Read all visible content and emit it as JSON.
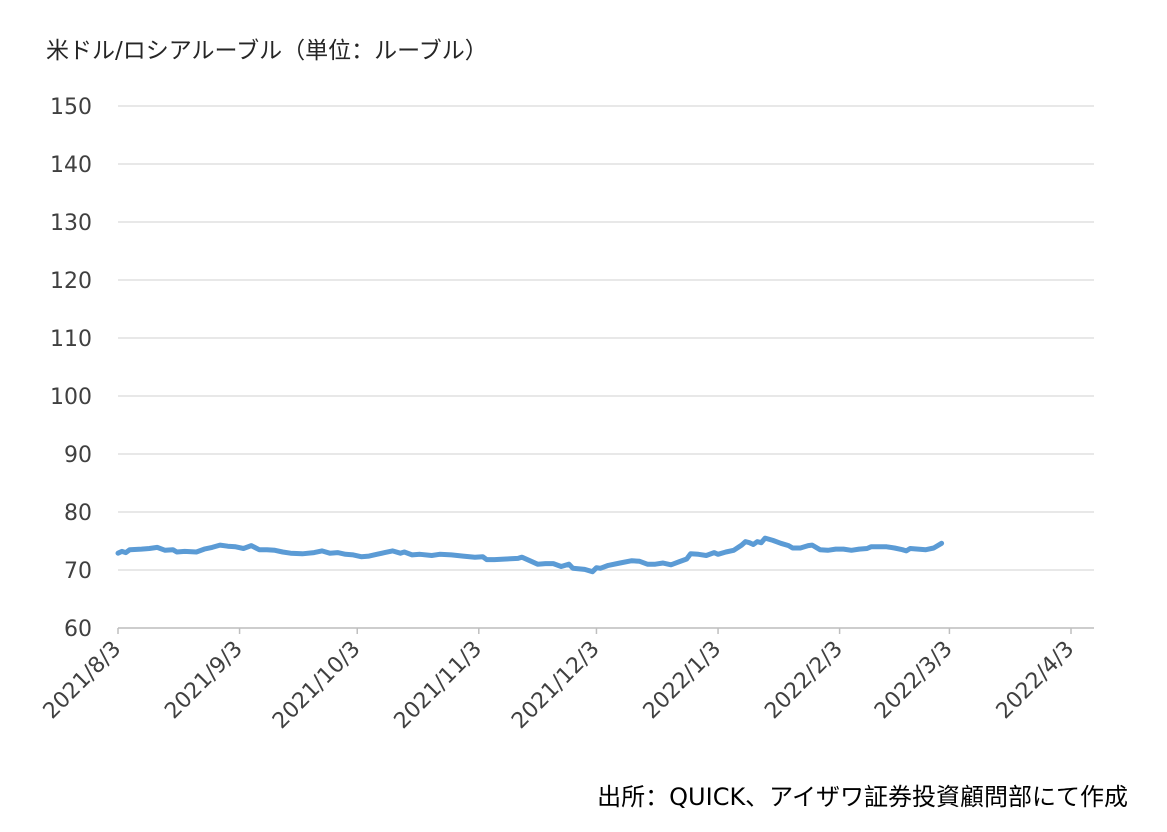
{
  "chart_data": {
    "type": "line",
    "title": "",
    "y_unit_label": "米ドル/ロシアルーブル（単位：ルーブル）",
    "source_note": "出所：QUICK、アイザワ証券投資顧問部にて作成",
    "ylim": [
      60,
      150
    ],
    "y_ticks": [
      150,
      140,
      130,
      120,
      110,
      100,
      90,
      80,
      70,
      60
    ],
    "x_tick_labels": [
      "2021/8/3",
      "2021/9/3",
      "2021/10/3",
      "2021/11/3",
      "2021/12/3",
      "2022/1/3",
      "2022/2/3",
      "2022/3/3",
      "2022/4/3"
    ],
    "grid": true,
    "line_color": "#5B9BD5",
    "grid_color": "#D9D9D9",
    "series": [
      {
        "values": [
          {
            "x": "2021-08-03",
            "y": 72.9
          },
          {
            "x": "2021-08-04",
            "y": 73.2
          },
          {
            "x": "2021-08-05",
            "y": 73.0
          },
          {
            "x": "2021-08-06",
            "y": 73.5
          },
          {
            "x": "2021-08-09",
            "y": 73.6
          },
          {
            "x": "2021-08-11",
            "y": 73.7
          },
          {
            "x": "2021-08-13",
            "y": 73.9
          },
          {
            "x": "2021-08-15",
            "y": 73.4
          },
          {
            "x": "2021-08-17",
            "y": 73.5
          },
          {
            "x": "2021-08-18",
            "y": 73.1
          },
          {
            "x": "2021-08-20",
            "y": 73.2
          },
          {
            "x": "2021-08-23",
            "y": 73.1
          },
          {
            "x": "2021-08-25",
            "y": 73.6
          },
          {
            "x": "2021-08-27",
            "y": 73.9
          },
          {
            "x": "2021-08-29",
            "y": 74.3
          },
          {
            "x": "2021-08-31",
            "y": 74.1
          },
          {
            "x": "2021-09-02",
            "y": 74.0
          },
          {
            "x": "2021-09-04",
            "y": 73.7
          },
          {
            "x": "2021-09-06",
            "y": 74.2
          },
          {
            "x": "2021-09-08",
            "y": 73.5
          },
          {
            "x": "2021-09-10",
            "y": 73.5
          },
          {
            "x": "2021-09-12",
            "y": 73.4
          },
          {
            "x": "2021-09-14",
            "y": 73.1
          },
          {
            "x": "2021-09-16",
            "y": 72.9
          },
          {
            "x": "2021-09-19",
            "y": 72.8
          },
          {
            "x": "2021-09-22",
            "y": 73.0
          },
          {
            "x": "2021-09-24",
            "y": 73.3
          },
          {
            "x": "2021-09-26",
            "y": 72.9
          },
          {
            "x": "2021-09-28",
            "y": 73.0
          },
          {
            "x": "2021-09-30",
            "y": 72.7
          },
          {
            "x": "2021-10-02",
            "y": 72.6
          },
          {
            "x": "2021-10-04",
            "y": 72.3
          },
          {
            "x": "2021-10-06",
            "y": 72.4
          },
          {
            "x": "2021-10-08",
            "y": 72.7
          },
          {
            "x": "2021-10-10",
            "y": 73.0
          },
          {
            "x": "2021-10-12",
            "y": 73.3
          },
          {
            "x": "2021-10-14",
            "y": 72.9
          },
          {
            "x": "2021-10-15",
            "y": 73.1
          },
          {
            "x": "2021-10-17",
            "y": 72.6
          },
          {
            "x": "2021-10-19",
            "y": 72.7
          },
          {
            "x": "2021-10-22",
            "y": 72.5
          },
          {
            "x": "2021-10-24",
            "y": 72.7
          },
          {
            "x": "2021-10-27",
            "y": 72.6
          },
          {
            "x": "2021-10-30",
            "y": 72.4
          },
          {
            "x": "2021-11-02",
            "y": 72.2
          },
          {
            "x": "2021-11-04",
            "y": 72.3
          },
          {
            "x": "2021-11-05",
            "y": 71.8
          },
          {
            "x": "2021-11-07",
            "y": 71.8
          },
          {
            "x": "2021-11-10",
            "y": 71.9
          },
          {
            "x": "2021-11-13",
            "y": 72.0
          },
          {
            "x": "2021-11-14",
            "y": 72.2
          },
          {
            "x": "2021-11-16",
            "y": 71.6
          },
          {
            "x": "2021-11-18",
            "y": 71.0
          },
          {
            "x": "2021-11-20",
            "y": 71.1
          },
          {
            "x": "2021-11-22",
            "y": 71.1
          },
          {
            "x": "2021-11-24",
            "y": 70.6
          },
          {
            "x": "2021-11-26",
            "y": 71.0
          },
          {
            "x": "2021-11-27",
            "y": 70.3
          },
          {
            "x": "2021-11-30",
            "y": 70.1
          },
          {
            "x": "2021-12-02",
            "y": 69.7
          },
          {
            "x": "2021-12-03",
            "y": 70.4
          },
          {
            "x": "2021-12-04",
            "y": 70.3
          },
          {
            "x": "2021-12-06",
            "y": 70.8
          },
          {
            "x": "2021-12-09",
            "y": 71.2
          },
          {
            "x": "2021-12-12",
            "y": 71.6
          },
          {
            "x": "2021-12-14",
            "y": 71.5
          },
          {
            "x": "2021-12-16",
            "y": 71.0
          },
          {
            "x": "2021-12-18",
            "y": 71.0
          },
          {
            "x": "2021-12-20",
            "y": 71.2
          },
          {
            "x": "2021-12-22",
            "y": 70.9
          },
          {
            "x": "2021-12-24",
            "y": 71.4
          },
          {
            "x": "2021-12-26",
            "y": 71.9
          },
          {
            "x": "2021-12-27",
            "y": 72.8
          },
          {
            "x": "2021-12-29",
            "y": 72.7
          },
          {
            "x": "2021-12-31",
            "y": 72.5
          },
          {
            "x": "2022-01-02",
            "y": 73.0
          },
          {
            "x": "2022-01-03",
            "y": 72.7
          },
          {
            "x": "2022-01-05",
            "y": 73.1
          },
          {
            "x": "2022-01-07",
            "y": 73.4
          },
          {
            "x": "2022-01-09",
            "y": 74.3
          },
          {
            "x": "2022-01-10",
            "y": 74.9
          },
          {
            "x": "2022-01-11",
            "y": 74.7
          },
          {
            "x": "2022-01-12",
            "y": 74.4
          },
          {
            "x": "2022-01-13",
            "y": 74.9
          },
          {
            "x": "2022-01-14",
            "y": 74.7
          },
          {
            "x": "2022-01-15",
            "y": 75.5
          },
          {
            "x": "2022-01-17",
            "y": 75.1
          },
          {
            "x": "2022-01-19",
            "y": 74.6
          },
          {
            "x": "2022-01-21",
            "y": 74.2
          },
          {
            "x": "2022-01-22",
            "y": 73.8
          },
          {
            "x": "2022-01-24",
            "y": 73.8
          },
          {
            "x": "2022-01-26",
            "y": 74.2
          },
          {
            "x": "2022-01-27",
            "y": 74.3
          },
          {
            "x": "2022-01-29",
            "y": 73.5
          },
          {
            "x": "2022-01-31",
            "y": 73.4
          },
          {
            "x": "2022-02-02",
            "y": 73.6
          },
          {
            "x": "2022-02-04",
            "y": 73.6
          },
          {
            "x": "2022-02-06",
            "y": 73.4
          },
          {
            "x": "2022-02-08",
            "y": 73.6
          },
          {
            "x": "2022-02-10",
            "y": 73.7
          },
          {
            "x": "2022-02-11",
            "y": 74.0
          },
          {
            "x": "2022-02-13",
            "y": 74.0
          },
          {
            "x": "2022-02-15",
            "y": 74.0
          },
          {
            "x": "2022-02-17",
            "y": 73.8
          },
          {
            "x": "2022-02-19",
            "y": 73.5
          },
          {
            "x": "2022-02-20",
            "y": 73.3
          },
          {
            "x": "2022-02-21",
            "y": 73.7
          },
          {
            "x": "2022-02-23",
            "y": 73.6
          },
          {
            "x": "2022-02-25",
            "y": 73.5
          },
          {
            "x": "2022-02-27",
            "y": 73.8
          },
          {
            "x": "2022-03-01",
            "y": 74.6
          }
        ]
      }
    ]
  }
}
